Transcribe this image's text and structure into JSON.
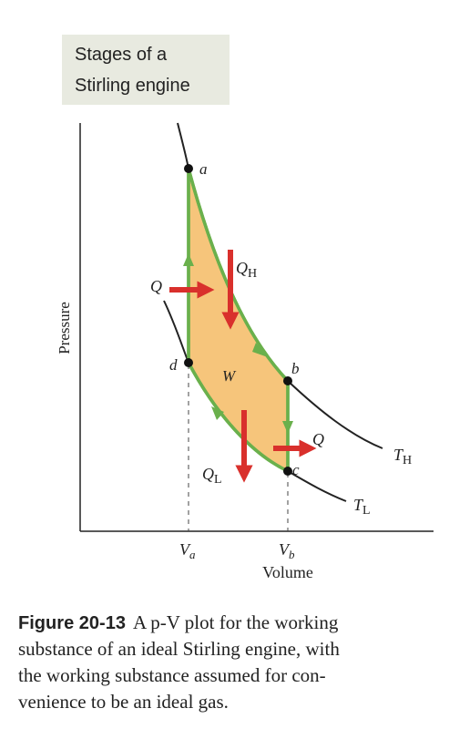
{
  "title": {
    "lines": [
      "Stages of a",
      "Stirling engine"
    ]
  },
  "points": {
    "a": "a",
    "b": "b",
    "c": "c",
    "d": "d"
  },
  "heat": {
    "q_in": "Q",
    "q_h": {
      "symbol": "Q",
      "sub": "H"
    },
    "q_out": "Q",
    "q_l": {
      "symbol": "Q",
      "sub": "L"
    }
  },
  "work": "W",
  "isotherms": {
    "high": {
      "symbol": "T",
      "sub": "H"
    },
    "low": {
      "symbol": "T",
      "sub": "L"
    }
  },
  "axes": {
    "x_label": "Volume",
    "y_label": "Pressure",
    "va": {
      "symbol": "V",
      "sub": "a"
    },
    "vb": {
      "symbol": "V",
      "sub": "b"
    }
  },
  "caption": {
    "label": "Figure 20-13",
    "lines": [
      "A p-V plot for the working",
      "substance of an ideal Stirling engine, with",
      "the working substance assumed for con-",
      "venience to be an ideal gas."
    ]
  }
}
